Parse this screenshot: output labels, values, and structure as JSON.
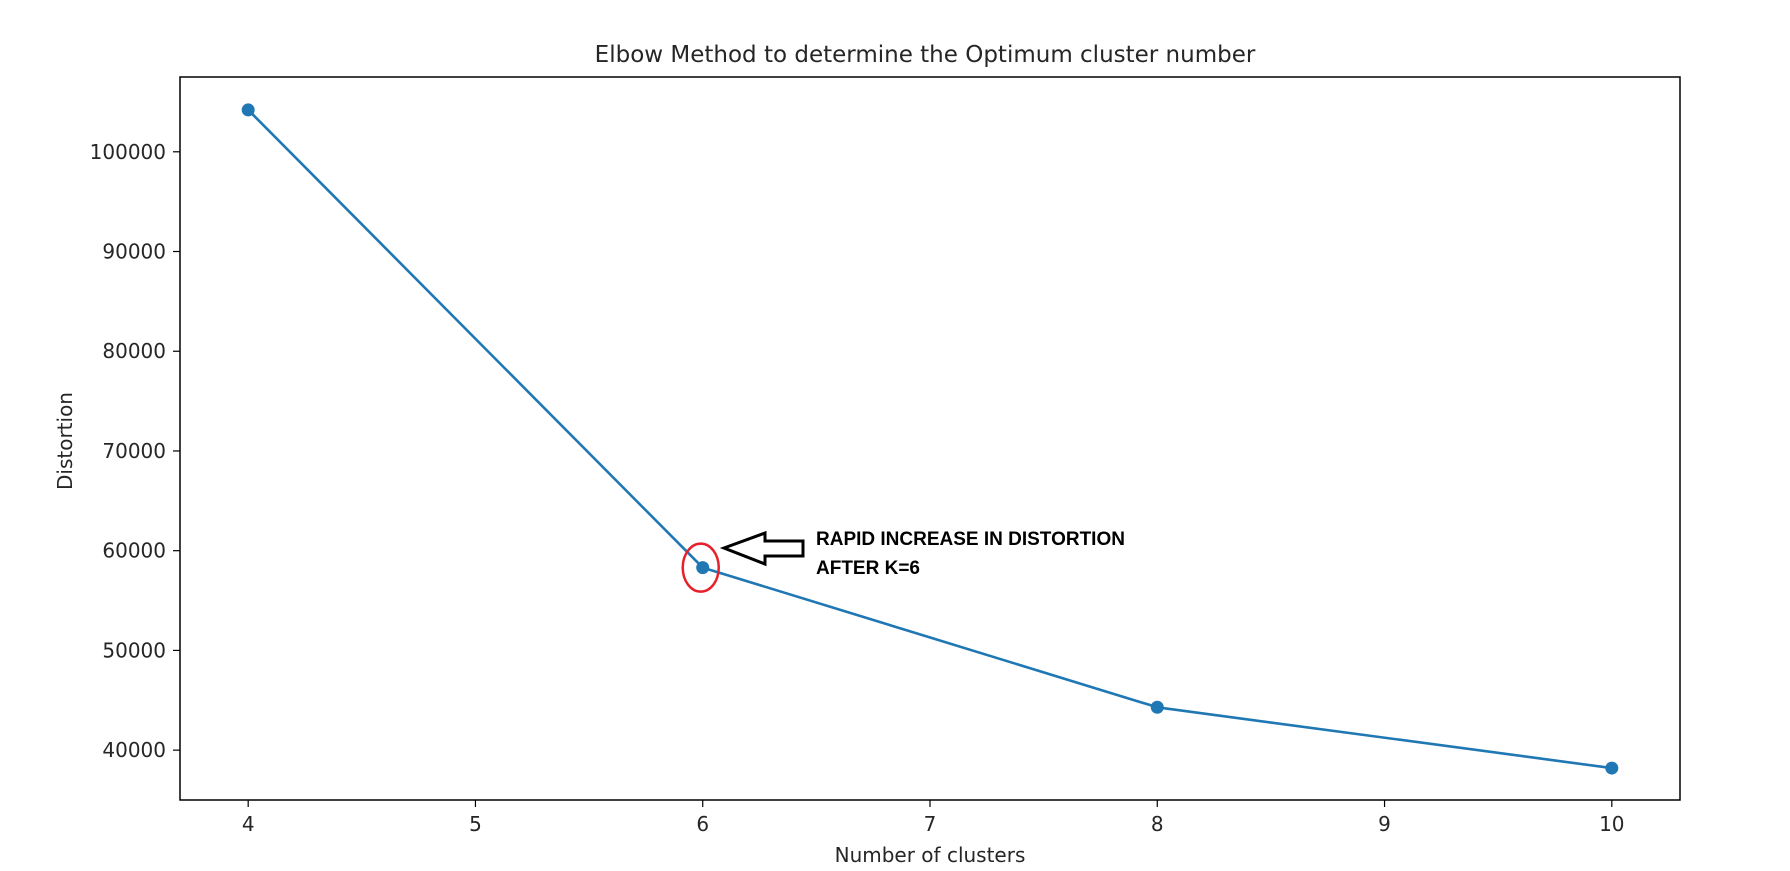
{
  "chart_data": {
    "type": "line",
    "title": "Elbow Method to determine the Optimum cluster number",
    "xlabel": "Number of clusters",
    "ylabel": "Distortion",
    "xlim": [
      3.7,
      10.3
    ],
    "ylim": [
      35000,
      107500
    ],
    "x_ticks": [
      4,
      5,
      6,
      7,
      8,
      9,
      10
    ],
    "y_ticks": [
      40000,
      50000,
      60000,
      70000,
      80000,
      90000,
      100000
    ],
    "grid": false,
    "legend": "none",
    "series": [
      {
        "color": "#1f77b4",
        "marker": "circle",
        "x": [
          4,
          6,
          8,
          10
        ],
        "y": [
          104200,
          58300,
          44300,
          38200
        ]
      }
    ],
    "annotation": {
      "lines": [
        "RAPID INCREASE IN DISTORTION",
        "AFTER K=6"
      ],
      "target_x": 6,
      "target_y": 58300,
      "highlight_color": "#e8202a"
    }
  }
}
